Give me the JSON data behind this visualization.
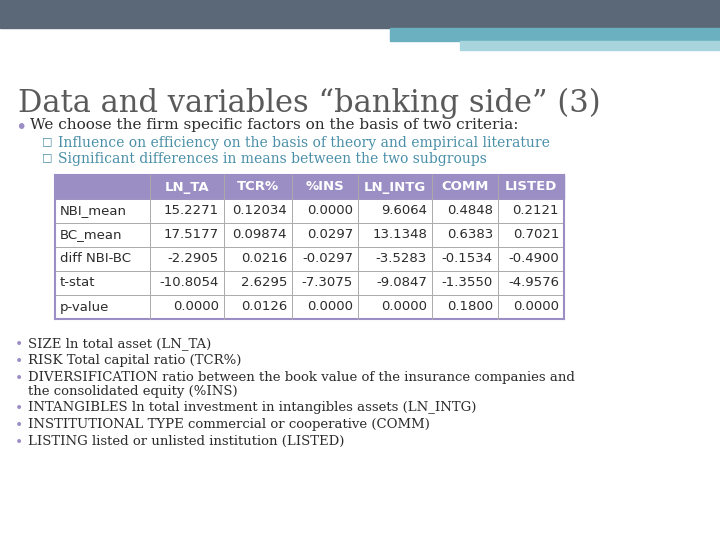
{
  "title": "Data and variables “banking side” (3)",
  "title_color": "#5a5a5a",
  "bg_color": "#ffffff",
  "header_bg": "#9b8ec4",
  "header_color": "#ffffff",
  "table_border": "#9b8ec4",
  "top_bar_dark": "#5a6878",
  "top_bar_mid": "#6ab0c0",
  "top_bar_light": "#a8d4de",
  "bullet_color": "#9b8ec4",
  "sub_bullet_color": "#4a8fa8",
  "text_color": "#2c2c2c",
  "bullet1_text": "We choose the firm specific factors on the basis of two criteria:",
  "sub_bullets": [
    "Influence on efficiency on the basis of theory and empirical literature",
    "Significant differences in means between the two subgroups"
  ],
  "col_headers": [
    "",
    "LN_TA",
    "TCR%",
    "%INS",
    "LN_INTG",
    "COMM",
    "LISTED"
  ],
  "rows": [
    [
      "NBI_mean",
      "15.2271",
      "0.12034",
      "0.0000",
      "9.6064",
      "0.4848",
      "0.2121"
    ],
    [
      "BC_mean",
      "17.5177",
      "0.09874",
      "0.0297",
      "13.1348",
      "0.6383",
      "0.7021"
    ],
    [
      "diff NBI-BC",
      "-2.2905",
      "0.0216",
      "-0.0297",
      "-3.5283",
      "-0.1534",
      "-0.4900"
    ],
    [
      "t-stat",
      "-10.8054",
      "2.6295",
      "-7.3075",
      "-9.0847",
      "-1.3550",
      "-4.9576"
    ],
    [
      "p-value",
      "0.0000",
      "0.0126",
      "0.0000",
      "0.0000",
      "0.1800",
      "0.0000"
    ]
  ],
  "bottom_bullets": [
    [
      "SIZE ln total asset (LN_TA)",
      1
    ],
    [
      "RISK Total capital ratio (TCR%)",
      1
    ],
    [
      "DIVERSIFICATION ratio between the book value of the insurance companies and the consolidated equity (%INS)",
      2
    ],
    [
      "INTANGIBLES ln total investment in intangibles assets (LN_INTG)",
      1
    ],
    [
      "INSTITUTIONAL TYPE commercial or cooperative (COMM)",
      1
    ],
    [
      "LISTING listed or unlisted institution (LISTED)",
      1
    ]
  ]
}
